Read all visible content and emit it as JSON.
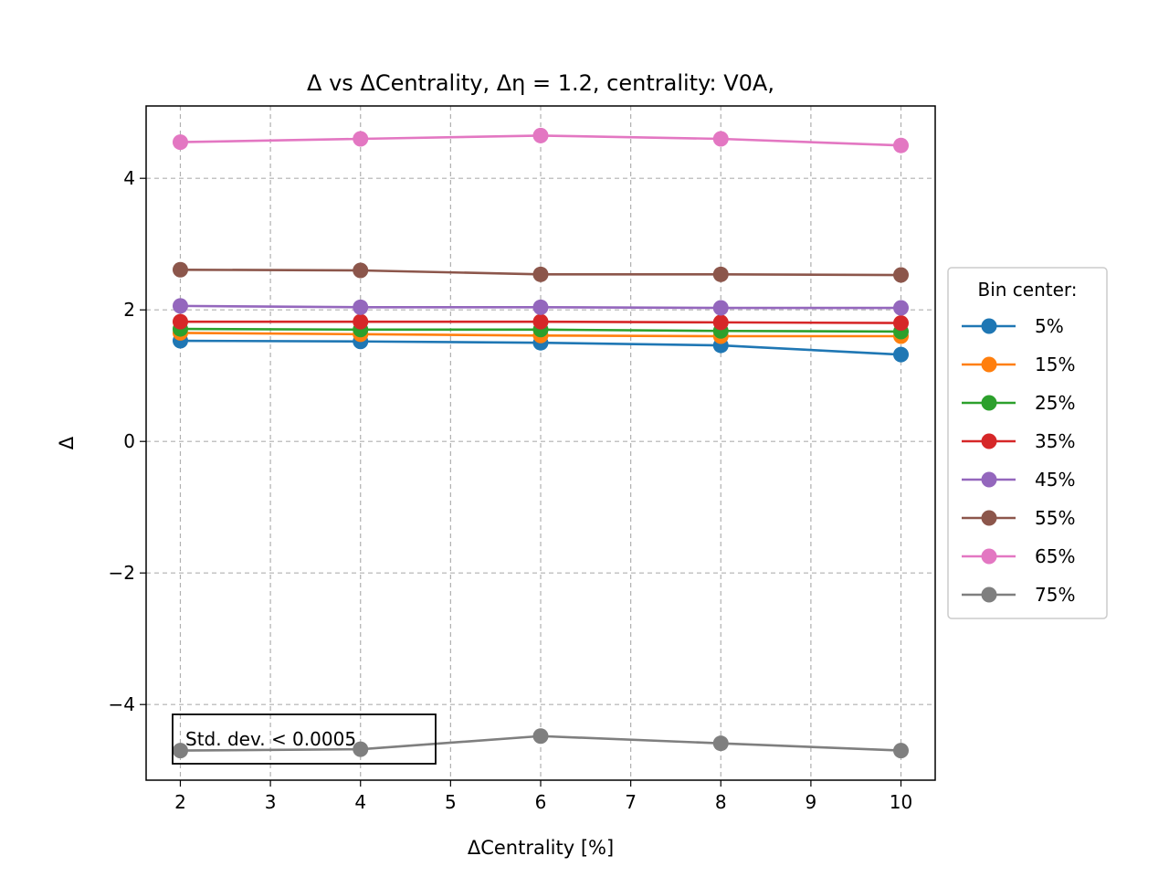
{
  "chart_data": {
    "type": "line",
    "title": "Δ vs ΔCentrality, Δη = 1.2, centrality: V0A,",
    "xlabel": "ΔCentrality [%]",
    "ylabel": "Δ",
    "xlim": [
      1.62,
      10.38
    ],
    "ylim": [
      -5.15,
      5.1
    ],
    "xticks": [
      2,
      3,
      4,
      5,
      6,
      7,
      8,
      9,
      10
    ],
    "yticks": [
      -4,
      -2,
      0,
      2,
      4
    ],
    "ytick_labels": [
      "−4",
      "−2",
      "0",
      "2",
      "4"
    ],
    "grid": true,
    "legend_title": "Bin center:",
    "legend_position": "right",
    "annotation": "Std. dev. < 0.0005",
    "x": [
      2,
      4,
      6,
      8,
      10
    ],
    "series": [
      {
        "name": "5%",
        "color": "#1f77b4",
        "values": [
          1.53,
          1.52,
          1.5,
          1.46,
          1.32
        ]
      },
      {
        "name": "15%",
        "color": "#ff7f0e",
        "values": [
          1.65,
          1.63,
          1.61,
          1.6,
          1.6
        ]
      },
      {
        "name": "25%",
        "color": "#2ca02c",
        "values": [
          1.71,
          1.7,
          1.7,
          1.68,
          1.67
        ]
      },
      {
        "name": "35%",
        "color": "#d62728",
        "values": [
          1.82,
          1.82,
          1.82,
          1.81,
          1.8
        ]
      },
      {
        "name": "45%",
        "color": "#9467bd",
        "values": [
          2.06,
          2.04,
          2.04,
          2.03,
          2.03
        ]
      },
      {
        "name": "55%",
        "color": "#8c564b",
        "values": [
          2.61,
          2.6,
          2.54,
          2.54,
          2.53
        ]
      },
      {
        "name": "65%",
        "color": "#e377c2",
        "values": [
          4.55,
          4.6,
          4.65,
          4.6,
          4.5
        ]
      },
      {
        "name": "75%",
        "color": "#7f7f7f",
        "values": [
          -4.7,
          -4.68,
          -4.48,
          -4.59,
          -4.7
        ]
      }
    ]
  }
}
